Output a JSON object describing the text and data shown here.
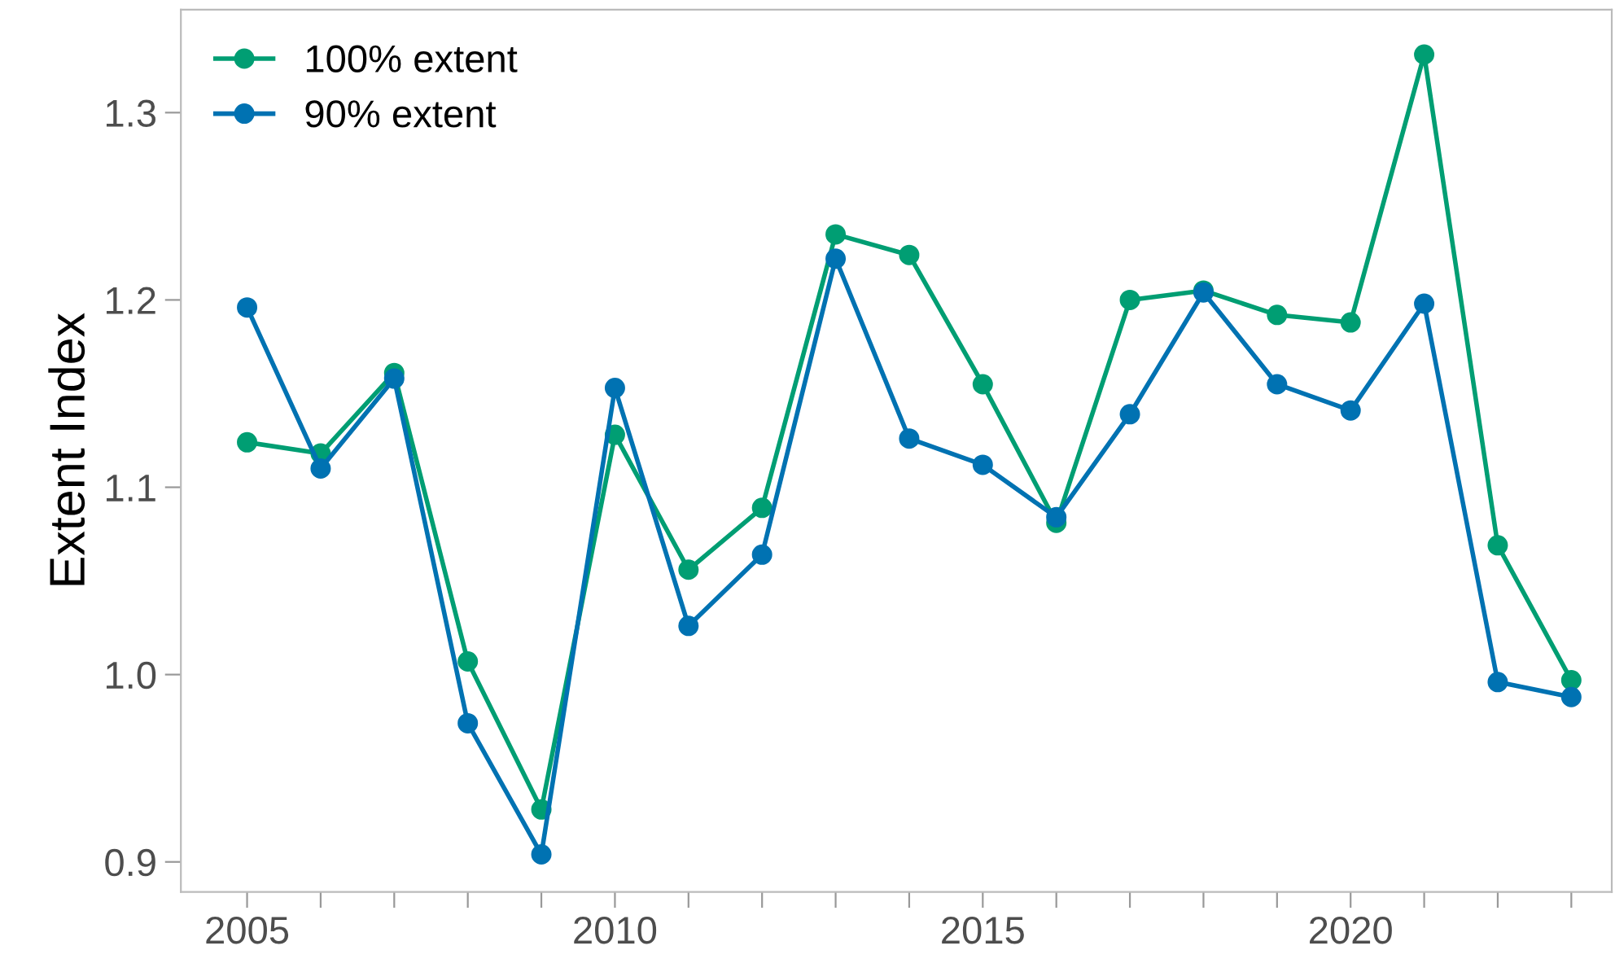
{
  "chart_data": {
    "type": "line",
    "ylabel": "Extent Index",
    "x": [
      2005,
      2006,
      2007,
      2008,
      2009,
      2010,
      2011,
      2012,
      2013,
      2014,
      2015,
      2016,
      2017,
      2018,
      2019,
      2020,
      2021,
      2022,
      2023
    ],
    "series": [
      {
        "name": "100% extent",
        "color": "#009e73",
        "values": [
          1.124,
          1.118,
          1.161,
          1.007,
          0.928,
          1.128,
          1.056,
          1.089,
          1.235,
          1.224,
          1.155,
          1.081,
          1.2,
          1.205,
          1.192,
          1.188,
          1.331,
          1.069,
          0.997
        ]
      },
      {
        "name": "90% extent",
        "color": "#0072b2",
        "values": [
          1.196,
          1.11,
          1.158,
          0.974,
          0.904,
          1.153,
          1.026,
          1.064,
          1.222,
          1.126,
          1.112,
          1.084,
          1.139,
          1.204,
          1.155,
          1.141,
          1.198,
          0.996,
          0.988
        ]
      }
    ],
    "xlim": [
      2004.1,
      2023.55
    ],
    "xticks": [
      2005,
      {
        "value": 2006,
        "label": null
      },
      {
        "value": 2007,
        "label": null
      },
      {
        "value": 2008,
        "label": null
      },
      {
        "value": 2009,
        "label": null
      },
      2010,
      {
        "value": 2011,
        "label": null
      },
      {
        "value": 2012,
        "label": null
      },
      {
        "value": 2013,
        "label": null
      },
      {
        "value": 2014,
        "label": null
      },
      2015,
      {
        "value": 2016,
        "label": null
      },
      {
        "value": 2017,
        "label": null
      },
      {
        "value": 2018,
        "label": null
      },
      {
        "value": 2019,
        "label": null
      },
      2020,
      {
        "value": 2021,
        "label": null
      },
      {
        "value": 2022,
        "label": null
      },
      {
        "value": 2023,
        "label": null
      }
    ],
    "ylim": [
      0.884,
      1.355
    ],
    "yticks": [
      0.9,
      {
        "value": 1.0,
        "label": "1.0"
      },
      1.1,
      1.2,
      1.3
    ],
    "grid": false,
    "legend": "top left",
    "marker": "circle",
    "line_style": "solid"
  }
}
